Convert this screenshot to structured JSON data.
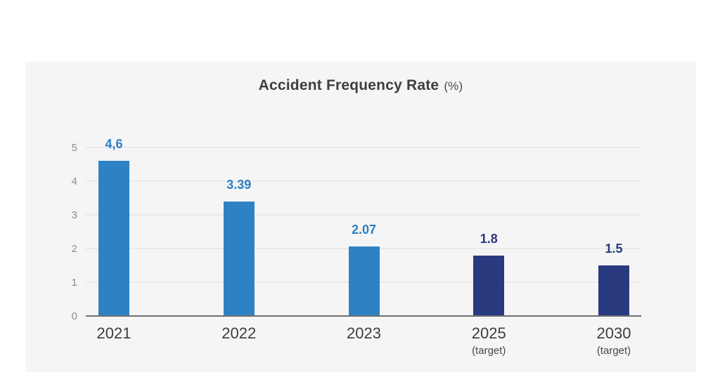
{
  "title": {
    "main": "Accident Frequency Rate",
    "unit": "(%)"
  },
  "colors": {
    "page_bg": "#FFFFFF",
    "card_bg": "#F5F5F5",
    "title_text": "#3E3E3E",
    "gridline": "#E9E9E9",
    "axis_line": "#6F6F6F",
    "y_tick_text": "#8C8C8C",
    "x_label_text": "#3E3E3E"
  },
  "chart_data": {
    "type": "bar",
    "title": "Accident Frequency Rate (%)",
    "categories": [
      "2021",
      "2022",
      "2023",
      "2025",
      "2030"
    ],
    "category_sublabels": [
      "",
      "",
      "",
      "(target)",
      "(target)"
    ],
    "values": [
      4.6,
      3.39,
      2.07,
      1.8,
      1.5
    ],
    "value_labels": [
      "4,6",
      "3.39",
      "2.07",
      "1.8",
      "1.5"
    ],
    "bar_kinds": [
      "actual",
      "actual",
      "actual",
      "target",
      "target"
    ],
    "bar_colors": {
      "actual": "#2E82C4",
      "target": "#293A7F"
    },
    "label_colors": {
      "actual": "#2E7FC4",
      "target": "#293A7F"
    },
    "xlabel": "",
    "ylabel": "",
    "ylim": [
      0,
      5
    ],
    "yticks": [
      0,
      1,
      2,
      3,
      4,
      5
    ],
    "grid": true,
    "legend": false
  }
}
